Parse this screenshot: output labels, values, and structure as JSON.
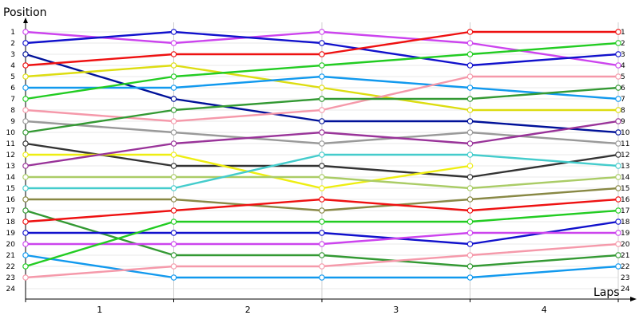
{
  "chart_data": {
    "type": "line",
    "ylabel": "Position",
    "xlabel": "Laps",
    "x": [
      0,
      1,
      2,
      3,
      4
    ],
    "x_tick_labels": [
      "1",
      "2",
      "3",
      "4"
    ],
    "y_tick_labels": [
      "1",
      "2",
      "3",
      "4",
      "5",
      "6",
      "7",
      "8",
      "9",
      "10",
      "11",
      "12",
      "13",
      "14",
      "15",
      "16",
      "17",
      "18",
      "19",
      "20",
      "21",
      "22",
      "23",
      "24"
    ],
    "right_tick_labels": [
      "1",
      "2",
      "3",
      "4",
      "5",
      "6",
      "7",
      "8",
      "9",
      "10",
      "11",
      "12",
      "13",
      "14",
      "15",
      "16",
      "17",
      "18",
      "19",
      "20",
      "21",
      "22",
      "23",
      "24"
    ],
    "ylim": [
      1,
      24
    ],
    "y_inverted": true,
    "grid": true,
    "series": [
      {
        "color": "#cc44ee",
        "values": [
          1,
          2,
          1,
          2,
          4
        ]
      },
      {
        "color": "#1111cc",
        "values": [
          2,
          1,
          2,
          4,
          3
        ]
      },
      {
        "color": "#001199",
        "values": [
          3,
          7,
          9,
          9,
          10
        ]
      },
      {
        "color": "#ee1111",
        "values": [
          4,
          3,
          3,
          1,
          1
        ]
      },
      {
        "color": "#dddd11",
        "values": [
          5,
          4,
          6,
          8,
          8
        ]
      },
      {
        "color": "#1199ee",
        "values": [
          6,
          6,
          5,
          6,
          7
        ]
      },
      {
        "color": "#22cc22",
        "values": [
          7,
          5,
          4,
          3,
          2
        ]
      },
      {
        "color": "#f599aa",
        "values": [
          8,
          9,
          8,
          5,
          5
        ]
      },
      {
        "color": "#999999",
        "values": [
          9,
          10,
          11,
          10,
          11
        ]
      },
      {
        "color": "#339933",
        "values": [
          10,
          8,
          7,
          7,
          6
        ]
      },
      {
        "color": "#333333",
        "values": [
          11,
          13,
          13,
          14,
          12
        ]
      },
      {
        "color": "#eeee11",
        "values": [
          12,
          12,
          15,
          13,
          null
        ]
      },
      {
        "color": "#993399",
        "values": [
          13,
          11,
          10,
          11,
          9
        ]
      },
      {
        "color": "#aacc66",
        "values": [
          14,
          14,
          14,
          15,
          14
        ]
      },
      {
        "color": "#44cccc",
        "values": [
          15,
          15,
          12,
          12,
          13
        ]
      },
      {
        "color": "#888844",
        "values": [
          16,
          16,
          17,
          16,
          15
        ]
      },
      {
        "color": "#339933",
        "values": [
          17,
          21,
          21,
          22,
          21
        ]
      },
      {
        "color": "#ee1111",
        "values": [
          18,
          17,
          16,
          17,
          16
        ]
      },
      {
        "color": "#1111cc",
        "values": [
          19,
          19,
          19,
          20,
          18
        ]
      },
      {
        "color": "#cc44ee",
        "values": [
          20,
          20,
          20,
          19,
          19
        ]
      },
      {
        "color": "#1199ee",
        "values": [
          21,
          23,
          23,
          23,
          22
        ]
      },
      {
        "color": "#22cc22",
        "values": [
          22,
          18,
          18,
          18,
          17
        ]
      },
      {
        "color": "#f599aa",
        "values": [
          23,
          22,
          22,
          21,
          20
        ]
      }
    ]
  }
}
